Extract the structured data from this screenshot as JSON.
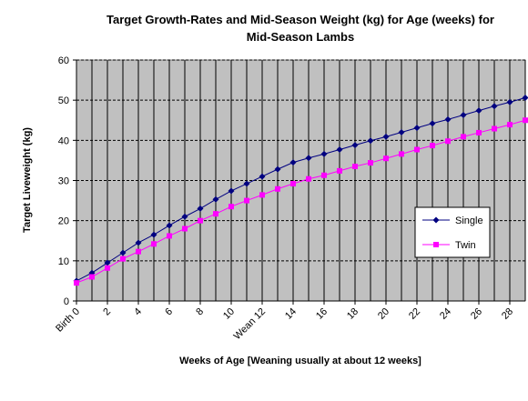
{
  "chart_data": {
    "type": "line",
    "title": [
      "Target Growth-Rates and Mid-Season Weight (kg) for Age (weeks) for",
      "Mid-Season Lambs"
    ],
    "x_label": "Weeks of Age [Weaning usually at about 12 weeks]",
    "y_label": "Target Liveweight (kg)",
    "x": [
      0,
      1,
      2,
      3,
      4,
      5,
      6,
      7,
      8,
      9,
      10,
      11,
      12,
      13,
      14,
      15,
      16,
      17,
      18,
      19,
      20,
      21,
      22,
      23,
      24,
      25,
      26,
      27,
      28,
      29
    ],
    "xlim": [
      0,
      29
    ],
    "xticks": [
      {
        "value": 0,
        "label": "Birth 0"
      },
      2,
      4,
      6,
      8,
      10,
      {
        "value": 12,
        "label": "Wean 12"
      },
      14,
      16,
      18,
      20,
      22,
      24,
      26,
      28
    ],
    "ylim": [
      0,
      60
    ],
    "yticks": [
      0,
      10,
      20,
      30,
      40,
      50,
      60
    ],
    "grid": true,
    "legend": "right",
    "series": [
      {
        "name": "Single",
        "color": "#000080",
        "marker": "diamond",
        "values": [
          5,
          7,
          9.5,
          12,
          14.5,
          16.5,
          18.8,
          21,
          23,
          25.3,
          27.4,
          29.2,
          31,
          32.8,
          34.5,
          35.6,
          36.6,
          37.7,
          38.8,
          39.9,
          40.9,
          42,
          43.1,
          44.2,
          45.2,
          46.3,
          47.4,
          48.5,
          49.5,
          50.6
        ]
      },
      {
        "name": "Twin",
        "color": "#ff00ff",
        "marker": "square",
        "values": [
          4.5,
          6,
          8.2,
          10.5,
          12.3,
          14.2,
          16.2,
          18,
          20,
          21.7,
          23.5,
          25,
          26.4,
          27.9,
          29.2,
          30.4,
          31.3,
          32.4,
          33.5,
          34.4,
          35.5,
          36.6,
          37.7,
          38.7,
          39.8,
          40.9,
          41.9,
          42.9,
          43.9,
          45
        ]
      }
    ]
  }
}
